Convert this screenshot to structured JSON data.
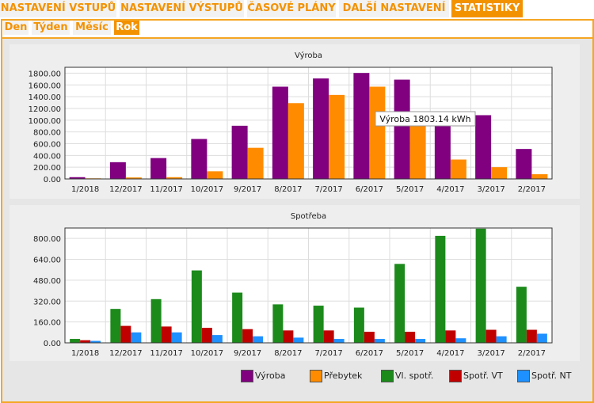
{
  "tabs": [
    {
      "label": "NASTAVENÍ VSTUPŮ"
    },
    {
      "label": "NASTAVENÍ VÝSTUPŮ"
    },
    {
      "label": "ČASOVÉ PLÁNY"
    },
    {
      "label": "DALŠÍ NASTAVENÍ"
    },
    {
      "label": "STATISTIKY"
    }
  ],
  "subtabs": [
    {
      "label": "Den"
    },
    {
      "label": "Týden"
    },
    {
      "label": "Měsíc"
    },
    {
      "label": "Rok"
    }
  ],
  "colors": {
    "vyroba": "#800080",
    "prebytek": "#ff8c00",
    "vl_spotreba": "#1b8a1b",
    "spotreba_vt": "#c00000",
    "spotreba_nt": "#1e90ff",
    "accent": "#f39200"
  },
  "chart_data": [
    {
      "type": "bar",
      "title": "Výroba",
      "categories": [
        "1/2018",
        "12/2017",
        "11/2017",
        "10/2017",
        "9/2017",
        "8/2017",
        "7/2017",
        "6/2017",
        "5/2017",
        "4/2017",
        "3/2017",
        "2/2017"
      ],
      "y_ticks": [
        "0.00",
        "200.00",
        "400.00",
        "600.00",
        "800.00",
        "1000.00",
        "1200.00",
        "1400.00",
        "1600.00",
        "1800.00"
      ],
      "ylim": [
        0,
        1900
      ],
      "series": [
        {
          "name": "Výroba",
          "values": [
            30,
            285,
            355,
            680,
            905,
            1570,
            1710,
            1803.14,
            1690,
            1000,
            1085,
            510
          ]
        },
        {
          "name": "Přebytek",
          "values": [
            10,
            25,
            30,
            130,
            530,
            1290,
            1430,
            1570,
            950,
            330,
            200,
            80
          ]
        }
      ],
      "tooltip": "Výroba 1803.14 kWh"
    },
    {
      "type": "bar",
      "title": "Spotřeba",
      "categories": [
        "1/2018",
        "12/2017",
        "11/2017",
        "10/2017",
        "9/2017",
        "8/2017",
        "7/2017",
        "6/2017",
        "5/2017",
        "4/2017",
        "3/2017",
        "2/2017"
      ],
      "y_ticks": [
        "0.00",
        "160.00",
        "320.00",
        "480.00",
        "640.00",
        "800.00"
      ],
      "ylim": [
        0,
        880
      ],
      "series": [
        {
          "name": "Vl. spotř.",
          "values": [
            30,
            260,
            335,
            555,
            385,
            295,
            285,
            270,
            605,
            820,
            875,
            430
          ]
        },
        {
          "name": "Spotř. VT",
          "values": [
            20,
            130,
            125,
            115,
            105,
            95,
            95,
            85,
            85,
            95,
            100,
            100
          ]
        },
        {
          "name": "Spotř. NT",
          "values": [
            15,
            80,
            80,
            60,
            50,
            40,
            30,
            30,
            30,
            35,
            50,
            70
          ]
        }
      ]
    }
  ],
  "legend": [
    {
      "label": "Výroba",
      "color": "#800080"
    },
    {
      "label": "Přebytek",
      "color": "#ff8c00"
    },
    {
      "label": "Vl. spotř.",
      "color": "#1b8a1b"
    },
    {
      "label": "Spotř. VT",
      "color": "#c00000"
    },
    {
      "label": "Spotř. NT",
      "color": "#1e90ff"
    }
  ]
}
